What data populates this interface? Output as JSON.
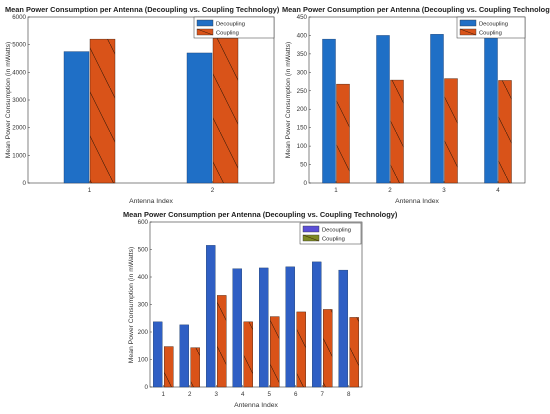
{
  "colors": {
    "decoupling": "#1f6fc6",
    "coupling": "#d95319",
    "coupling_panel3": "#7e8a24",
    "hatch": "#3a1a08",
    "axis": "#333333"
  },
  "chart_data": [
    {
      "type": "bar",
      "title": "Mean Power Consumption per Antenna (Decoupling vs. Coupling Technology)",
      "xlabel": "Antenna Index",
      "ylabel": "Mean Power Consumption (in mWatts)",
      "categories": [
        "1",
        "2"
      ],
      "ylim": [
        0,
        6000
      ],
      "yticks": [
        "0",
        "1000",
        "2000",
        "3000",
        "4000",
        "5000",
        "6000"
      ],
      "grid": false,
      "legend": "top-right",
      "series": [
        {
          "name": "Decoupling",
          "values": [
            4750,
            4700
          ]
        },
        {
          "name": "Coupling",
          "values": [
            5200,
            5230
          ]
        }
      ]
    },
    {
      "type": "bar",
      "title": "Mean Power Consumption per Antenna (Decoupling vs. Coupling Technology)",
      "xlabel": "Antenna Index",
      "ylabel": "Mean Power Consumption (in mWatts)",
      "categories": [
        "1",
        "2",
        "3",
        "4"
      ],
      "ylim": [
        0,
        450
      ],
      "yticks": [
        "0",
        "50",
        "100",
        "150",
        "200",
        "250",
        "300",
        "350",
        "400",
        "450"
      ],
      "grid": false,
      "legend": "top-right",
      "series": [
        {
          "name": "Decoupling",
          "values": [
            390,
            400,
            403,
            397
          ]
        },
        {
          "name": "Coupling",
          "values": [
            268,
            279,
            283,
            278
          ]
        }
      ]
    },
    {
      "type": "bar",
      "title": "Mean Power Consumption per Antenna (Decoupling vs. Coupling Technology)",
      "xlabel": "Antenna Index",
      "ylabel": "Mean Power Consumption (in mWatts)",
      "categories": [
        "1",
        "2",
        "3",
        "4",
        "5",
        "6",
        "7",
        "8"
      ],
      "ylim": [
        0,
        600
      ],
      "yticks": [
        "0",
        "100",
        "200",
        "300",
        "400",
        "500",
        "600"
      ],
      "grid": false,
      "legend": "top-right",
      "series": [
        {
          "name": "Decoupling",
          "values": [
            237,
            226,
            515,
            430,
            433,
            437,
            455,
            425
          ]
        },
        {
          "name": "Coupling",
          "values": [
            147,
            143,
            333,
            237,
            256,
            273,
            282,
            253
          ]
        }
      ]
    }
  ]
}
